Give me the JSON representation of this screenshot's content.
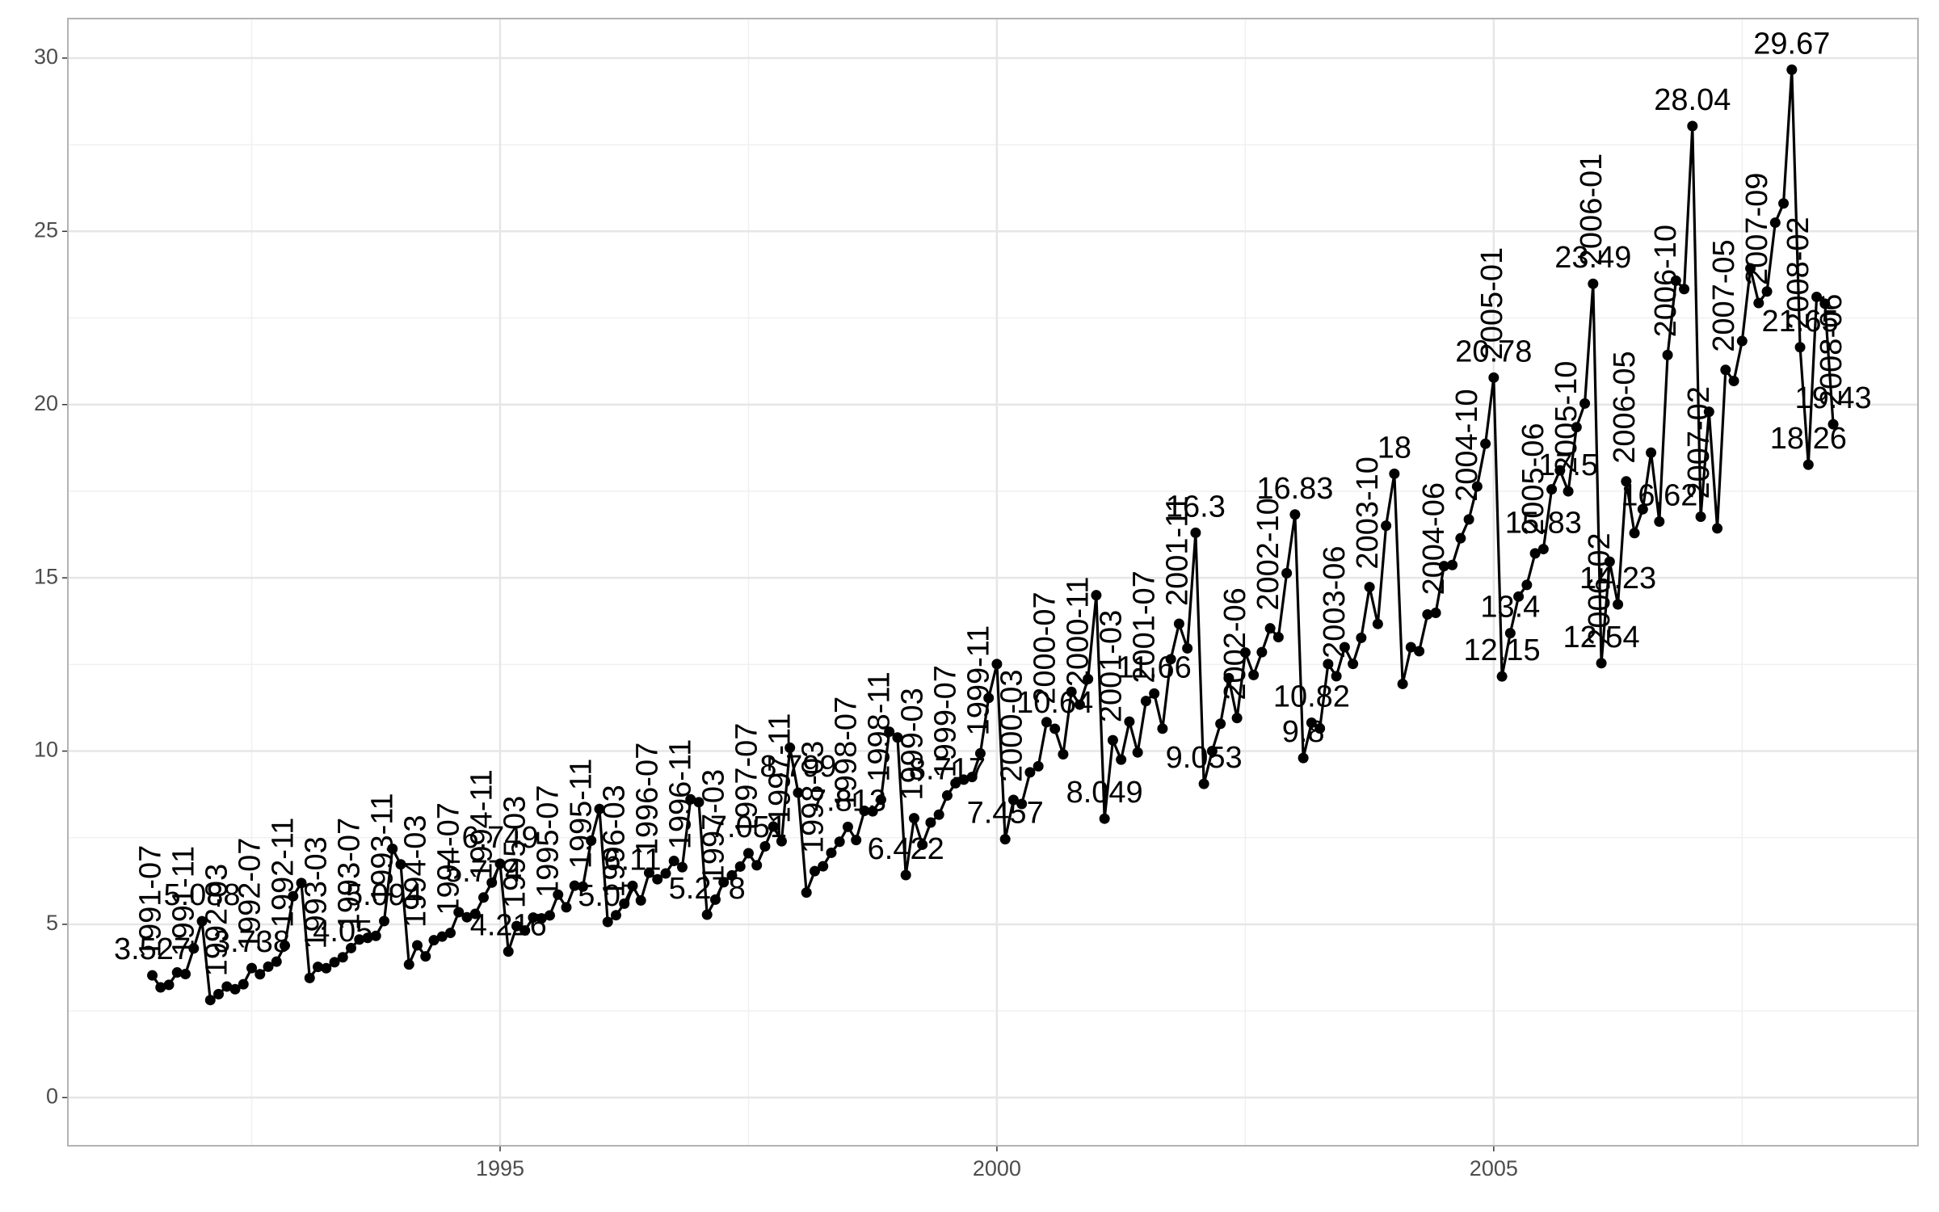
{
  "chart_data": {
    "type": "line",
    "color": "#000000",
    "grid": true,
    "x": [
      "1991-07",
      "1991-08",
      "1991-09",
      "1991-10",
      "1991-11",
      "1991-12",
      "1992-01",
      "1992-02",
      "1992-03",
      "1992-04",
      "1992-05",
      "1992-06",
      "1992-07",
      "1992-08",
      "1992-09",
      "1992-10",
      "1992-11",
      "1992-12",
      "1993-01",
      "1993-02",
      "1993-03",
      "1993-04",
      "1993-05",
      "1993-06",
      "1993-07",
      "1993-08",
      "1993-09",
      "1993-10",
      "1993-11",
      "1993-12",
      "1994-01",
      "1994-02",
      "1994-03",
      "1994-04",
      "1994-05",
      "1994-06",
      "1994-07",
      "1994-08",
      "1994-09",
      "1994-10",
      "1994-11",
      "1994-12",
      "1995-01",
      "1995-02",
      "1995-03",
      "1995-04",
      "1995-05",
      "1995-06",
      "1995-07",
      "1995-08",
      "1995-09",
      "1995-10",
      "1995-11",
      "1995-12",
      "1996-01",
      "1996-02",
      "1996-03",
      "1996-04",
      "1996-05",
      "1996-06",
      "1996-07",
      "1996-08",
      "1996-09",
      "1996-10",
      "1996-11",
      "1996-12",
      "1997-01",
      "1997-02",
      "1997-03",
      "1997-04",
      "1997-05",
      "1997-06",
      "1997-07",
      "1997-08",
      "1997-09",
      "1997-10",
      "1997-11",
      "1997-12",
      "1998-01",
      "1998-02",
      "1998-03",
      "1998-04",
      "1998-05",
      "1998-06",
      "1998-07",
      "1998-08",
      "1998-09",
      "1998-10",
      "1998-11",
      "1998-12",
      "1999-01",
      "1999-02",
      "1999-03",
      "1999-04",
      "1999-05",
      "1999-06",
      "1999-07",
      "1999-08",
      "1999-09",
      "1999-10",
      "1999-11",
      "1999-12",
      "2000-01",
      "2000-02",
      "2000-03",
      "2000-04",
      "2000-05",
      "2000-06",
      "2000-07",
      "2000-08",
      "2000-09",
      "2000-10",
      "2000-11",
      "2000-12",
      "2001-01",
      "2001-02",
      "2001-03",
      "2001-04",
      "2001-05",
      "2001-06",
      "2001-07",
      "2001-08",
      "2001-09",
      "2001-10",
      "2001-11",
      "2001-12",
      "2002-01",
      "2002-02",
      "2002-03",
      "2002-04",
      "2002-05",
      "2002-06",
      "2002-07",
      "2002-08",
      "2002-09",
      "2002-10",
      "2002-11",
      "2002-12",
      "2003-01",
      "2003-02",
      "2003-03",
      "2003-04",
      "2003-05",
      "2003-06",
      "2003-07",
      "2003-08",
      "2003-09",
      "2003-10",
      "2003-11",
      "2003-12",
      "2004-01",
      "2004-02",
      "2004-03",
      "2004-04",
      "2004-05",
      "2004-06",
      "2004-07",
      "2004-08",
      "2004-09",
      "2004-10",
      "2004-11",
      "2004-12",
      "2005-01",
      "2005-02",
      "2005-03",
      "2005-04",
      "2005-05",
      "2005-06",
      "2005-07",
      "2005-08",
      "2005-09",
      "2005-10",
      "2005-11",
      "2005-12",
      "2006-01",
      "2006-02",
      "2006-03",
      "2006-04",
      "2006-05",
      "2006-06",
      "2006-07",
      "2006-08",
      "2006-09",
      "2006-10",
      "2006-11",
      "2006-12",
      "2007-01",
      "2007-02",
      "2007-03",
      "2007-04",
      "2007-05",
      "2007-06",
      "2007-07",
      "2007-08",
      "2007-09",
      "2007-10",
      "2007-11",
      "2007-12",
      "2008-01",
      "2008-02",
      "2008-03",
      "2008-04",
      "2008-05",
      "2008-06"
    ],
    "values": [
      3.526591,
      3.180891,
      3.252221,
      3.611003,
      3.565869,
      4.306371,
      5.088335,
      2.81452,
      2.985811,
      3.20478,
      3.127578,
      3.270523,
      3.737851,
      3.558776,
      3.777202,
      3.92449,
      4.386531,
      5.810549,
      6.192068,
      3.450857,
      3.772307,
      3.734303,
      3.905399,
      4.049687,
      4.315566,
      4.562185,
      4.608662,
      4.667851,
      5.093841,
      7.179962,
      6.731473,
      3.841278,
      4.394076,
      4.075341,
      4.540645,
      4.645615,
      4.752607,
      5.350605,
      5.204455,
      5.301651,
      5.773742,
      6.204593,
      6.749484,
      4.216067,
      4.949349,
      4.823045,
      5.194754,
      5.170787,
      5.256742,
      5.855277,
      5.490729,
      6.115293,
      6.088473,
      7.416598,
      8.329452,
      5.069796,
      5.262557,
      5.597126,
      6.110296,
      5.689161,
      6.486849,
      6.300569,
      6.467476,
      6.828629,
      6.649078,
      8.606937,
      8.524471,
      5.277918,
      5.714303,
      6.214529,
      6.411929,
      6.667716,
      7.050831,
      6.704919,
      7.250988,
      7.819733,
      7.398101,
      10.096233,
      8.798513,
      5.918261,
      6.534493,
      6.675736,
      7.064201,
      7.383381,
      7.813496,
      7.431892,
      8.275117,
      8.260441,
      8.596156,
      10.558939,
      10.391416,
      6.421535,
      8.062619,
      7.297739,
      7.936916,
      8.165323,
      8.71742,
      9.070964,
      9.177113,
      9.251887,
      9.933136,
      11.532974,
      12.511462,
      7.457199,
      8.591191,
      8.474,
      9.386803,
      9.560399,
      10.834295,
      10.643751,
      9.908162,
      11.710041,
      11.340151,
      12.079132,
      14.497581,
      8.049275,
      10.312891,
      9.753358,
      10.850382,
      9.961719,
      11.443601,
      11.659239,
      10.64706,
      12.652134,
      13.674466,
      12.965735,
      16.300269,
      9.053485,
      10.002449,
      10.78875,
      12.106705,
      10.954101,
      12.844566,
      12.1965,
      12.854748,
      13.542004,
      13.28764,
      15.134918,
      16.82835,
      9.800215,
      10.816994,
      10.654223,
      12.512323,
      12.16121,
      12.998046,
      12.517276,
      13.268658,
      14.733622,
      13.669382,
      16.503966,
      18.003768,
      11.93803,
      12.9979,
      12.882645,
      13.943447,
      13.989472,
      15.339097,
      15.370764,
      16.142005,
      16.685754,
      17.636728,
      18.869325,
      20.778723,
      12.154552,
      13.402392,
      14.459239,
      14.795102,
      15.705248,
      15.82955,
      17.554701,
      18.100864,
      17.496668,
      19.347265,
      20.031291,
      23.486694,
      12.536987,
      15.467018,
      14.233539,
      17.783058,
      16.291602,
      16.980282,
      18.612189,
      16.623343,
      21.430241,
      23.575517,
      23.334206,
      28.038383,
      16.763869,
      19.792754,
      16.427305,
      21.000742,
      20.681002,
      21.83489,
      23.930204,
      22.930357,
      23.26334,
      25.25003,
      25.80609,
      29.665356,
      21.654285,
      18.264945,
      23.107677,
      22.91251,
      19.43174
    ],
    "value_labels": [
      "3.527",
      null,
      null,
      null,
      null,
      null,
      "5.088",
      null,
      null,
      null,
      null,
      null,
      "3.738",
      null,
      null,
      null,
      null,
      null,
      null,
      null,
      null,
      null,
      null,
      "4.05",
      null,
      null,
      null,
      null,
      "5.094",
      null,
      null,
      null,
      null,
      null,
      null,
      null,
      null,
      null,
      null,
      null,
      "5.774",
      null,
      "6.749",
      "4.216",
      null,
      null,
      null,
      null,
      null,
      null,
      null,
      null,
      null,
      null,
      null,
      "5.07",
      null,
      null,
      "6.11",
      null,
      null,
      null,
      null,
      null,
      null,
      null,
      null,
      "5.278",
      null,
      null,
      null,
      null,
      "7.051",
      null,
      null,
      null,
      null,
      null,
      "8.799",
      null,
      null,
      null,
      null,
      null,
      "7.813",
      null,
      null,
      null,
      null,
      null,
      null,
      "6.422",
      null,
      null,
      null,
      null,
      "8.717",
      null,
      null,
      null,
      null,
      null,
      null,
      "7.457",
      null,
      null,
      null,
      null,
      null,
      "10.64",
      null,
      null,
      null,
      null,
      null,
      "8.049",
      null,
      null,
      null,
      null,
      null,
      "11.66",
      null,
      null,
      null,
      null,
      "16.3",
      "9.053",
      null,
      null,
      null,
      null,
      null,
      null,
      null,
      null,
      null,
      null,
      "16.83",
      "9.8",
      "10.82",
      null,
      null,
      null,
      null,
      null,
      null,
      null,
      null,
      null,
      "18",
      null,
      null,
      null,
      null,
      null,
      null,
      null,
      null,
      null,
      null,
      null,
      "20.78",
      "12.15",
      "13.4",
      null,
      null,
      null,
      "15.83",
      null,
      null,
      "17.5",
      null,
      null,
      "23.49",
      "12.54",
      null,
      "14.23",
      null,
      null,
      null,
      null,
      "16.62",
      null,
      null,
      null,
      "28.04",
      null,
      null,
      null,
      null,
      null,
      null,
      null,
      null,
      null,
      null,
      null,
      "29.67",
      "21.65",
      "18.26",
      null,
      null,
      "19.43"
    ],
    "date_labels": [
      "1991-07",
      null,
      null,
      null,
      "1991-11",
      null,
      null,
      null,
      "1992-03",
      null,
      null,
      null,
      "1992-07",
      null,
      null,
      null,
      "1992-11",
      null,
      null,
      null,
      "1993-03",
      null,
      null,
      null,
      "1993-07",
      null,
      null,
      null,
      "1993-11",
      null,
      null,
      null,
      "1994-03",
      null,
      null,
      null,
      "1994-07",
      null,
      null,
      null,
      "1994-11",
      null,
      null,
      null,
      "1995-03",
      null,
      null,
      null,
      "1995-07",
      null,
      null,
      null,
      "1995-11",
      null,
      null,
      null,
      "1996-03",
      null,
      null,
      null,
      "1996-07",
      null,
      null,
      null,
      "1996-11",
      null,
      null,
      null,
      "1997-03",
      null,
      null,
      null,
      "1997-07",
      null,
      null,
      null,
      "1997-11",
      null,
      null,
      null,
      "1998-03",
      null,
      null,
      null,
      "1998-07",
      null,
      null,
      null,
      "1998-11",
      null,
      null,
      null,
      "1999-03",
      null,
      null,
      null,
      "1999-07",
      null,
      null,
      null,
      "1999-11",
      null,
      null,
      null,
      "2000-03",
      null,
      null,
      null,
      "2000-07",
      null,
      null,
      null,
      "2000-11",
      null,
      null,
      null,
      "2001-03",
      null,
      null,
      null,
      "2001-07",
      null,
      null,
      null,
      "2001-11",
      null,
      null,
      null,
      null,
      null,
      null,
      "2002-06",
      null,
      null,
      null,
      "2002-10",
      null,
      null,
      null,
      null,
      null,
      null,
      null,
      "2003-06",
      null,
      null,
      null,
      "2003-10",
      null,
      null,
      null,
      null,
      null,
      null,
      null,
      "2004-06",
      null,
      null,
      null,
      "2004-10",
      null,
      null,
      "2005-01",
      null,
      null,
      null,
      null,
      "2005-06",
      null,
      null,
      null,
      "2005-10",
      null,
      null,
      "2006-01",
      "2006-02",
      null,
      null,
      "2006-05",
      null,
      null,
      null,
      null,
      "2006-10",
      null,
      null,
      null,
      "2007-02",
      null,
      null,
      "2007-05",
      null,
      null,
      null,
      "2007-09",
      null,
      null,
      null,
      null,
      "2008-02",
      null,
      null,
      null,
      "2008-06"
    ],
    "xlim": [
      1990.65,
      2009.27
    ],
    "xticks": [
      1995,
      2000,
      2005
    ],
    "xminorticks": [
      1992.5,
      1997.5,
      2002.5,
      2007.5
    ],
    "ylim": [
      -1.39,
      31.14
    ],
    "yticks": [
      0,
      5,
      10,
      15,
      20,
      25,
      30
    ],
    "yminorticks": [
      2.5,
      7.5,
      12.5,
      17.5,
      22.5,
      27.5
    ]
  }
}
